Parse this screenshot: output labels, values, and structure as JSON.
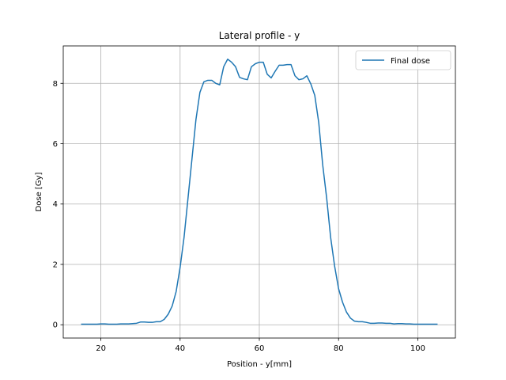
{
  "chart_data": {
    "type": "line",
    "title": "Lateral profile - y",
    "xlabel": "Position - y[mm]",
    "ylabel": "Dose [Gy]",
    "xlim": [
      10.5,
      109.5
    ],
    "ylim": [
      -0.44,
      9.24
    ],
    "xticks": [
      20,
      40,
      60,
      80,
      100
    ],
    "yticks": [
      0,
      2,
      4,
      6,
      8
    ],
    "grid": true,
    "legend_position": "top-right",
    "series": [
      {
        "name": "Final dose",
        "color": "#1f77b4",
        "x": [
          15,
          16,
          17,
          18,
          19,
          20,
          21,
          22,
          23,
          24,
          25,
          26,
          27,
          28,
          29,
          30,
          31,
          32,
          33,
          34,
          35,
          36,
          37,
          38,
          39,
          40,
          41,
          42,
          43,
          44,
          45,
          46,
          47,
          48,
          49,
          50,
          51,
          52,
          53,
          54,
          55,
          56,
          57,
          58,
          59,
          60,
          61,
          62,
          63,
          64,
          65,
          66,
          67,
          68,
          69,
          70,
          71,
          72,
          73,
          74,
          75,
          76,
          77,
          78,
          79,
          80,
          81,
          82,
          83,
          84,
          85,
          86,
          87,
          88,
          89,
          90,
          91,
          92,
          93,
          94,
          95,
          96,
          97,
          98,
          99,
          100,
          101,
          102,
          103,
          104,
          105
        ],
        "y": [
          0.02,
          0.02,
          0.02,
          0.02,
          0.02,
          0.03,
          0.03,
          0.02,
          0.02,
          0.02,
          0.03,
          0.03,
          0.03,
          0.04,
          0.05,
          0.09,
          0.09,
          0.08,
          0.08,
          0.1,
          0.1,
          0.18,
          0.35,
          0.62,
          1.1,
          1.9,
          2.9,
          4.2,
          5.5,
          6.8,
          7.7,
          8.05,
          8.1,
          8.1,
          8.0,
          7.95,
          8.55,
          8.8,
          8.7,
          8.55,
          8.2,
          8.15,
          8.12,
          8.55,
          8.65,
          8.7,
          8.7,
          8.3,
          8.18,
          8.4,
          8.6,
          8.6,
          8.62,
          8.62,
          8.25,
          8.12,
          8.15,
          8.25,
          7.98,
          7.6,
          6.7,
          5.3,
          4.2,
          2.9,
          1.95,
          1.2,
          0.75,
          0.42,
          0.22,
          0.12,
          0.1,
          0.1,
          0.08,
          0.05,
          0.05,
          0.06,
          0.06,
          0.05,
          0.05,
          0.03,
          0.04,
          0.04,
          0.03,
          0.03,
          0.02,
          0.02,
          0.02,
          0.02,
          0.02,
          0.02,
          0.02
        ]
      }
    ]
  }
}
